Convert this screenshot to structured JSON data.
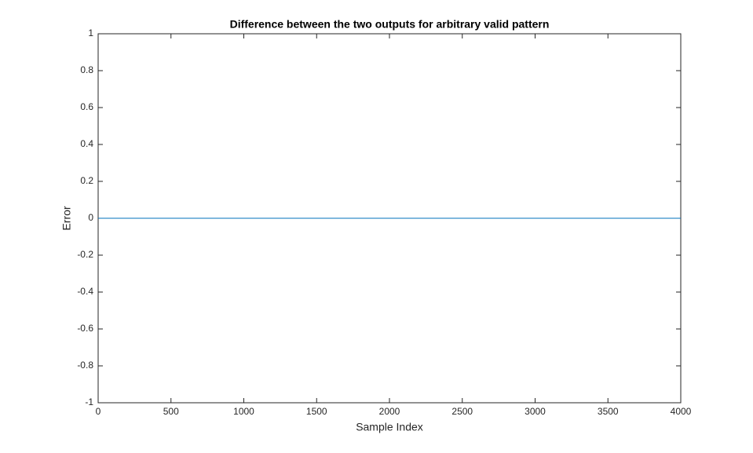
{
  "chart_data": {
    "type": "line",
    "title": "Difference between the two outputs for arbitrary valid pattern",
    "x_label": "Sample Index",
    "y_label": "Error",
    "x": [
      0,
      4000
    ],
    "series": [
      {
        "name": "Error",
        "color": "#0072BD",
        "values": [
          0,
          0
        ]
      }
    ],
    "xlim": [
      0,
      4000
    ],
    "xticks": [
      0,
      500,
      1000,
      1500,
      2000,
      2500,
      3000,
      3500,
      4000
    ],
    "ylim": [
      -1,
      1
    ],
    "yticks": [
      -1,
      -0.8,
      -0.6,
      -0.4,
      -0.2,
      0,
      0.2,
      0.4,
      0.6,
      0.8,
      1
    ],
    "grid": false
  }
}
